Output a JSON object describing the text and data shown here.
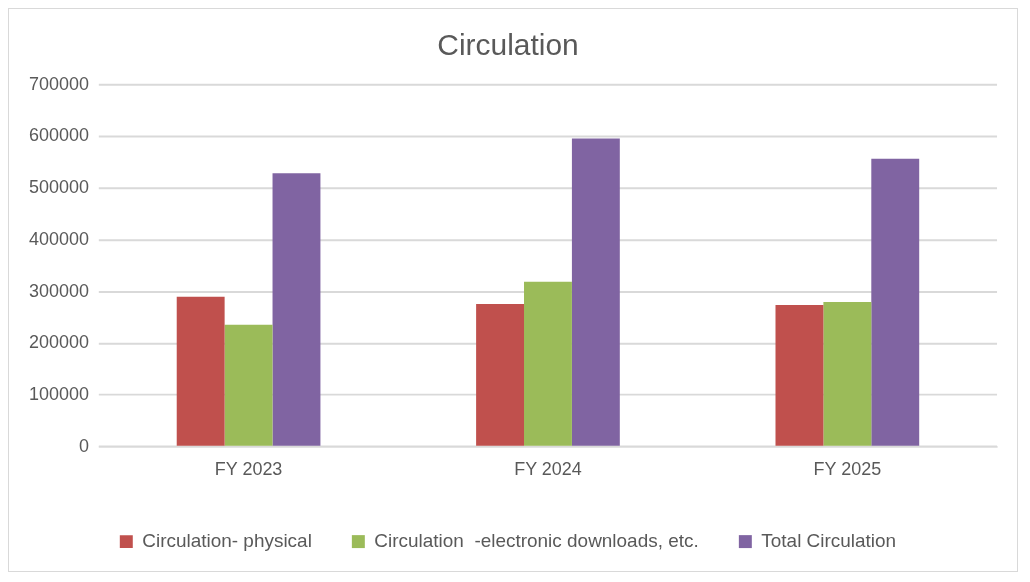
{
  "chart_data": {
    "type": "bar",
    "title": "Circulation",
    "categories": [
      "FY 2023",
      "FY 2024",
      "FY 2025"
    ],
    "series": [
      {
        "name": "Circulation- physical",
        "color": "#c0504d",
        "values": [
          290000,
          276000,
          274000
        ]
      },
      {
        "name": "Circulation  -electronic downloads, etc.",
        "color": "#9bbb59",
        "values": [
          236000,
          319000,
          280000
        ]
      },
      {
        "name": "Total Circulation",
        "color": "#8064a2",
        "values": [
          529000,
          596000,
          557000
        ]
      }
    ],
    "ylim": [
      0,
      700000
    ],
    "yticks": [
      0,
      100000,
      200000,
      300000,
      400000,
      500000,
      600000,
      700000
    ],
    "grid": "y",
    "legend": "bottom"
  }
}
